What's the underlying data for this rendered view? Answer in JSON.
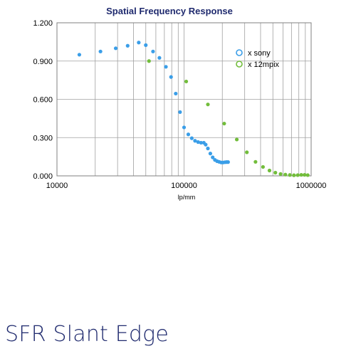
{
  "footer": {
    "title": "SFR Slant Edge"
  },
  "colors": {
    "title": "#1f2a6e",
    "sony": "#3a9ee8",
    "12mpix": "#72bd3b",
    "grid": "#a0a0a0",
    "footer": "#1f2a6e"
  },
  "chart_data": {
    "type": "scatter",
    "title": "Spatial Frequency Response",
    "xlabel": "lp/mm",
    "ylabel": "",
    "x_scale": "log",
    "xlim": [
      10000,
      1000000
    ],
    "ylim": [
      0,
      1.2
    ],
    "x_ticks": [
      "10000",
      "100000",
      "1000000"
    ],
    "y_ticks": [
      "0.000",
      "0.300",
      "0.600",
      "0.900",
      "1.200"
    ],
    "grid": true,
    "legend_position": "top-right",
    "series": [
      {
        "name": "x sony",
        "color": "#3a9ee8",
        "points": [
          [
            15000,
            0.95
          ],
          [
            22000,
            0.975
          ],
          [
            29000,
            1.0
          ],
          [
            36000,
            1.02
          ],
          [
            44000,
            1.045
          ],
          [
            50000,
            1.025
          ],
          [
            57000,
            0.975
          ],
          [
            64000,
            0.925
          ],
          [
            72000,
            0.855
          ],
          [
            79000,
            0.775
          ],
          [
            86000,
            0.645
          ],
          [
            93000,
            0.5
          ],
          [
            100000,
            0.38
          ],
          [
            108000,
            0.325
          ],
          [
            115000,
            0.295
          ],
          [
            122000,
            0.275
          ],
          [
            129000,
            0.265
          ],
          [
            136000,
            0.26
          ],
          [
            143000,
            0.26
          ],
          [
            148000,
            0.245
          ],
          [
            154000,
            0.215
          ],
          [
            161000,
            0.175
          ],
          [
            168000,
            0.145
          ],
          [
            175000,
            0.125
          ],
          [
            182000,
            0.115
          ],
          [
            189000,
            0.11
          ],
          [
            196000,
            0.105
          ],
          [
            203000,
            0.105
          ],
          [
            210000,
            0.107
          ],
          [
            216000,
            0.108
          ],
          [
            222000,
            0.108
          ]
        ]
      },
      {
        "name": "x 12mpix",
        "color": "#72bd3b",
        "points": [
          [
            53000,
            0.9
          ],
          [
            104000,
            0.74
          ],
          [
            154000,
            0.56
          ],
          [
            207000,
            0.41
          ],
          [
            260000,
            0.285
          ],
          [
            312000,
            0.185
          ],
          [
            365000,
            0.11
          ],
          [
            418000,
            0.07
          ],
          [
            470000,
            0.042
          ],
          [
            523000,
            0.025
          ],
          [
            575000,
            0.015
          ],
          [
            627000,
            0.01
          ],
          [
            680000,
            0.007
          ],
          [
            732000,
            0.005
          ],
          [
            784000,
            0.006
          ],
          [
            836000,
            0.008
          ],
          [
            888000,
            0.008
          ],
          [
            940000,
            0.006
          ]
        ]
      }
    ]
  }
}
